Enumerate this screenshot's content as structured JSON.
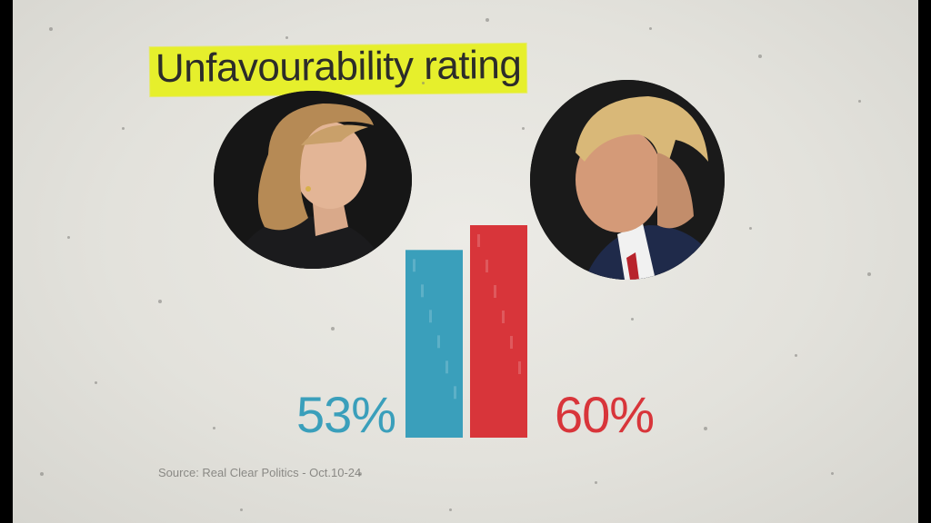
{
  "title": "Unfavourability rating",
  "source": "Source: Real Clear Politics - Oct.10-24",
  "colors": {
    "highlight": "#e6ef2c",
    "left_series": "#3a9fbb",
    "right_series": "#d8353a",
    "paper": "#e6e5e0"
  },
  "chart_data": {
    "type": "bar",
    "title": "Unfavourability rating",
    "categories": [
      "",
      ""
    ],
    "values": [
      53,
      60
    ],
    "labels": [
      "53%",
      "60%"
    ],
    "colors": [
      "#3a9fbb",
      "#d8353a"
    ],
    "xlabel": "",
    "ylabel": "",
    "grid": false,
    "legend": "none"
  }
}
